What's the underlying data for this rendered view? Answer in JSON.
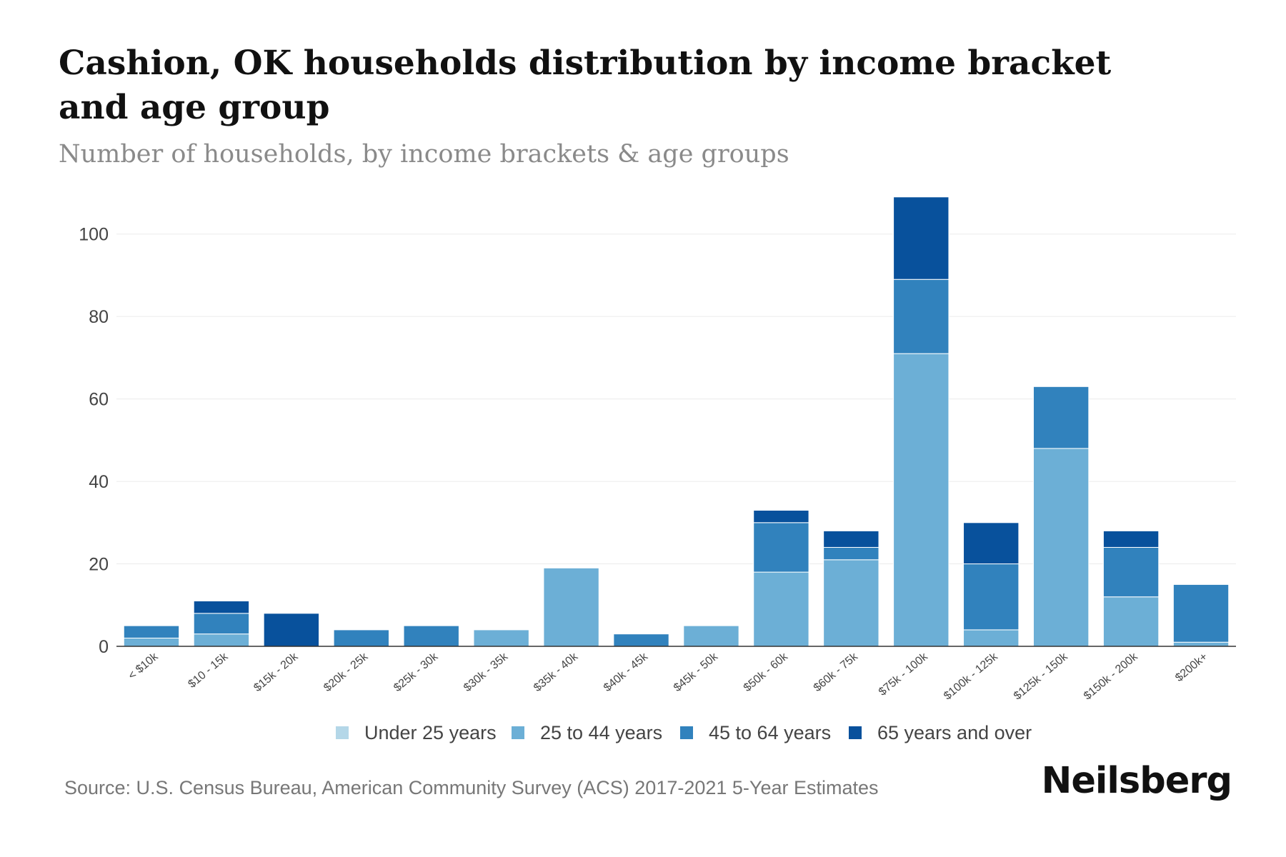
{
  "title": "Cashion, OK households distribution by income bracket and age group",
  "subtitle": "Number of households, by income brackets & age groups",
  "source": "Source: U.S. Census Bureau, American Community Survey (ACS) 2017-2021 5-Year Estimates",
  "brand": "Neilsberg",
  "colors": {
    "under_25": "#b4d7e8",
    "age_25_44": "#6cafd6",
    "age_45_64": "#3182bd",
    "age_65_over": "#08519c"
  },
  "chart_data": {
    "type": "bar",
    "stacked": true,
    "title": "Cashion, OK households distribution by income bracket and age group",
    "subtitle": "Number of households, by income brackets & age groups",
    "xlabel": "",
    "ylabel": "",
    "ylim": [
      0,
      110
    ],
    "yticks": [
      0,
      20,
      40,
      60,
      80,
      100
    ],
    "grid": true,
    "legend_position": "bottom-center",
    "categories": [
      "< $10k",
      "$10 - 15k",
      "$15k - 20k",
      "$20k - 25k",
      "$25k - 30k",
      "$30k - 35k",
      "$35k - 40k",
      "$40k - 45k",
      "$45k - 50k",
      "$50k - 60k",
      "$60k - 75k",
      "$75k - 100k",
      "$100k - 125k",
      "$125k - 150k",
      "$150k - 200k",
      "$200k+"
    ],
    "series": [
      {
        "name": "Under 25 years",
        "color": "#b4d7e8",
        "values": [
          0,
          0,
          0,
          0,
          0,
          0,
          0,
          0,
          0,
          0,
          0,
          0,
          0,
          0,
          0,
          0
        ]
      },
      {
        "name": "25 to 44 years",
        "color": "#6cafd6",
        "values": [
          2,
          3,
          0,
          0,
          0,
          4,
          19,
          0,
          5,
          18,
          21,
          71,
          4,
          48,
          12,
          1
        ]
      },
      {
        "name": "45 to 64 years",
        "color": "#3182bd",
        "values": [
          3,
          5,
          0,
          4,
          5,
          0,
          0,
          3,
          0,
          12,
          3,
          18,
          16,
          15,
          12,
          14
        ]
      },
      {
        "name": "65 years and over",
        "color": "#08519c",
        "values": [
          0,
          3,
          8,
          0,
          0,
          0,
          0,
          0,
          0,
          3,
          4,
          20,
          10,
          0,
          4,
          0
        ]
      }
    ]
  }
}
